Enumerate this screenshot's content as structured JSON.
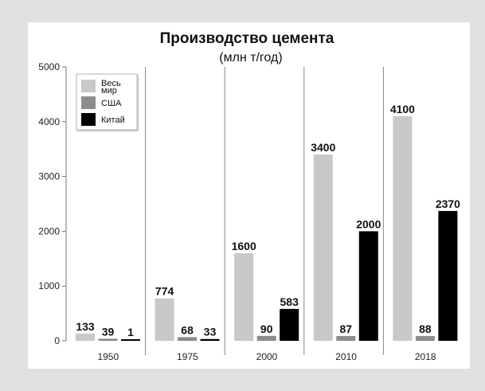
{
  "chart_data": {
    "type": "bar",
    "title": "Производство цемента",
    "subtitle": "(млн т/год)",
    "xlabel": "",
    "ylabel": "",
    "ylim": [
      0,
      5000
    ],
    "yticks": [
      "0",
      "1000",
      "2000",
      "3000",
      "4000",
      "5000"
    ],
    "categories": [
      "1950",
      "1975",
      "2000",
      "2010",
      "2018"
    ],
    "series": [
      {
        "name": "Весь мир",
        "name_lines": [
          "Весь",
          "мир"
        ],
        "color": "#c8c8c8",
        "values": [
          133,
          774,
          1600,
          3400,
          4100
        ]
      },
      {
        "name": "США",
        "name_lines": [
          "США"
        ],
        "color": "#8c8c8c",
        "values": [
          39,
          68,
          90,
          87,
          88
        ]
      },
      {
        "name": "Китай",
        "name_lines": [
          "Китай"
        ],
        "color": "#000000",
        "values": [
          1,
          33,
          583,
          2000,
          2370
        ]
      }
    ],
    "legend": "top-left",
    "grid": false
  }
}
